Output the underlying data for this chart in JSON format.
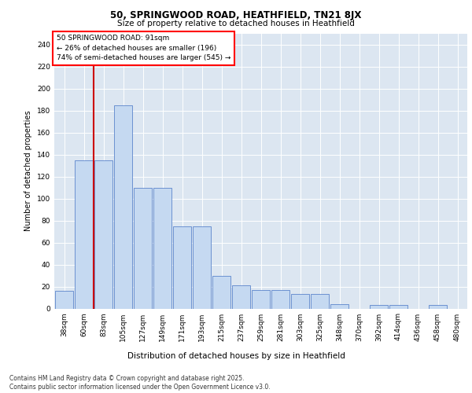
{
  "title1": "50, SPRINGWOOD ROAD, HEATHFIELD, TN21 8JX",
  "title2": "Size of property relative to detached houses in Heathfield",
  "xlabel": "Distribution of detached houses by size in Heathfield",
  "ylabel": "Number of detached properties",
  "categories": [
    "38sqm",
    "60sqm",
    "83sqm",
    "105sqm",
    "127sqm",
    "149sqm",
    "171sqm",
    "193sqm",
    "215sqm",
    "237sqm",
    "259sqm",
    "281sqm",
    "303sqm",
    "325sqm",
    "348sqm",
    "370sqm",
    "392sqm",
    "414sqm",
    "436sqm",
    "458sqm",
    "480sqm"
  ],
  "values": [
    16,
    135,
    135,
    185,
    110,
    110,
    75,
    75,
    30,
    21,
    17,
    17,
    13,
    13,
    4,
    0,
    3,
    3,
    0,
    3,
    0
  ],
  "bar_color": "#c5d9f1",
  "bar_edge_color": "#4472c4",
  "annotation_box_text": "50 SPRINGWOOD ROAD: 91sqm\n← 26% of detached houses are smaller (196)\n74% of semi-detached houses are larger (545) →",
  "vline_color": "#cc0000",
  "ylim": [
    0,
    250
  ],
  "yticks": [
    0,
    20,
    40,
    60,
    80,
    100,
    120,
    140,
    160,
    180,
    200,
    220,
    240
  ],
  "footnote": "Contains HM Land Registry data © Crown copyright and database right 2025.\nContains public sector information licensed under the Open Government Licence v3.0.",
  "plot_bg_color": "#dce6f1",
  "fig_bg_color": "#ffffff",
  "grid_color": "#ffffff",
  "title1_fontsize": 8.5,
  "title2_fontsize": 7.5,
  "ylabel_fontsize": 7.0,
  "xlabel_fontsize": 7.5,
  "tick_fontsize": 6.5,
  "annot_fontsize": 6.5,
  "footnote_fontsize": 5.5
}
